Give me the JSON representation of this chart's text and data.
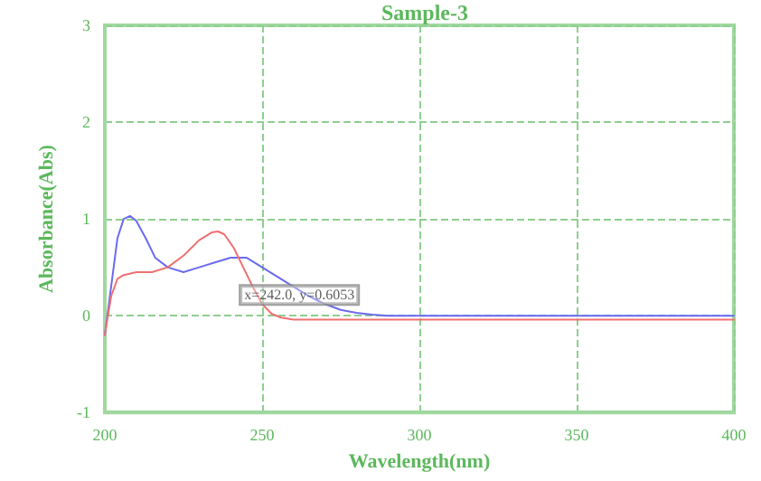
{
  "chart_data": {
    "type": "line",
    "title": "Sample-3",
    "xlabel": "Wavelength(nm)",
    "ylabel": "Absorbance(Abs)",
    "xlim": [
      200,
      400
    ],
    "xticks": [
      200,
      250,
      300,
      350,
      400
    ],
    "ylim": [
      -1,
      3
    ],
    "yticks": [
      -1,
      0,
      1,
      2,
      3
    ],
    "grid": true,
    "line_style": "solid",
    "marker": "none",
    "series": [
      {
        "color": "#6a6af0",
        "x": [
          200,
          202,
          204,
          206,
          208,
          210,
          213,
          216,
          220,
          225,
          230,
          235,
          240,
          245,
          250,
          255,
          260,
          265,
          270,
          275,
          280,
          285,
          290,
          300,
          320,
          350,
          380,
          400
        ],
        "values": [
          -0.2,
          0.3,
          0.8,
          1.0,
          1.03,
          0.98,
          0.8,
          0.6,
          0.5,
          0.45,
          0.5,
          0.55,
          0.6,
          0.6,
          0.5,
          0.4,
          0.3,
          0.2,
          0.12,
          0.06,
          0.03,
          0.01,
          0.0,
          0.0,
          0.0,
          0.0,
          0.0,
          0.0
        ]
      },
      {
        "color": "#f07070",
        "x": [
          200,
          202,
          204,
          206,
          210,
          215,
          220,
          225,
          230,
          234,
          236,
          238,
          241,
          244,
          247,
          250,
          253,
          256,
          260,
          270,
          300,
          350,
          400
        ],
        "values": [
          -0.2,
          0.2,
          0.38,
          0.42,
          0.45,
          0.45,
          0.5,
          0.62,
          0.78,
          0.86,
          0.87,
          0.84,
          0.7,
          0.5,
          0.3,
          0.12,
          0.02,
          -0.02,
          -0.04,
          -0.04,
          -0.04,
          -0.04,
          -0.04
        ]
      }
    ],
    "annotations": [
      {
        "text": "x=242.0, y=0.6053",
        "x": 242,
        "y": 0.6053
      }
    ]
  }
}
